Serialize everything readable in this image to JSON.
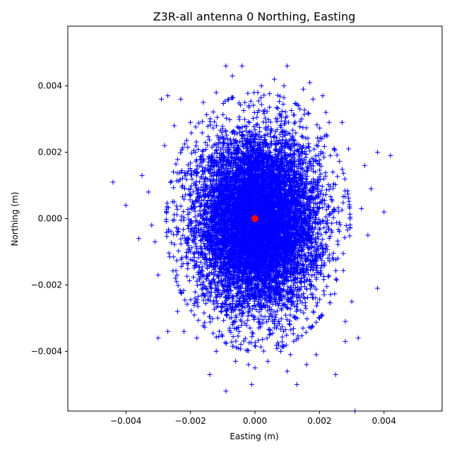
{
  "chart_data": {
    "type": "scatter",
    "title": "Z3R-all antenna 0 Northing, Easting",
    "xlabel": "Easting (m)",
    "ylabel": "Northing (m)",
    "xlim": [
      -0.0058,
      0.0058
    ],
    "ylim": [
      -0.0058,
      0.0058
    ],
    "x_ticks": [
      -0.004,
      -0.002,
      0.0,
      0.002,
      0.004
    ],
    "x_tick_labels": [
      "−0.004",
      "−0.002",
      "0.000",
      "0.002",
      "0.004"
    ],
    "y_ticks": [
      -0.004,
      -0.002,
      0.0,
      0.002,
      0.004
    ],
    "y_tick_labels": [
      "−0.004",
      "−0.002",
      "0.000",
      "0.002",
      "0.004"
    ],
    "grid": false,
    "legend": "none",
    "series": [
      {
        "marker": "plus",
        "color": "#0000ff",
        "center": [
          0.0001,
          -0.0001
        ],
        "sigma": [
          0.00095,
          0.0013
        ],
        "count": 9000,
        "points": [
          [
            -0.0044,
            0.0011
          ],
          [
            -0.004,
            0.0004
          ],
          [
            -0.0036,
            -0.0006
          ],
          [
            -0.0035,
            0.0013
          ],
          [
            -0.0033,
            0.0008
          ],
          [
            -0.0031,
            -0.0007
          ],
          [
            -0.003,
            -0.0017
          ],
          [
            -0.003,
            -0.0036
          ],
          [
            -0.0029,
            0.0036
          ],
          [
            -0.0027,
            0.0037
          ],
          [
            -0.0027,
            -0.0034
          ],
          [
            -0.0025,
            0.0028
          ],
          [
            -0.0024,
            -0.0028
          ],
          [
            -0.0023,
            0.0036
          ],
          [
            -0.0022,
            -0.0034
          ],
          [
            -0.002,
            0.0029
          ],
          [
            -0.0018,
            -0.0036
          ],
          [
            -0.0016,
            0.0035
          ],
          [
            -0.0014,
            -0.0047
          ],
          [
            -0.0012,
            0.0038
          ],
          [
            -0.0012,
            -0.004
          ],
          [
            -0.0009,
            0.0046
          ],
          [
            -0.0009,
            -0.0052
          ],
          [
            -0.0007,
            0.0043
          ],
          [
            -0.0006,
            -0.0043
          ],
          [
            -0.0004,
            0.0046
          ],
          [
            -0.0002,
            -0.0044
          ],
          [
            -0.0001,
            -0.005
          ],
          [
            0.0,
            -0.0045
          ],
          [
            0.0002,
            0.004
          ],
          [
            0.0004,
            -0.0043
          ],
          [
            0.0006,
            0.0042
          ],
          [
            0.0008,
            -0.004
          ],
          [
            0.0009,
            0.004
          ],
          [
            0.001,
            0.0046
          ],
          [
            0.001,
            -0.0046
          ],
          [
            0.0011,
            -0.0041
          ],
          [
            0.0013,
            -0.005
          ],
          [
            0.0015,
            0.0039
          ],
          [
            0.0016,
            -0.0044
          ],
          [
            0.0017,
            0.0041
          ],
          [
            0.0018,
            0.0036
          ],
          [
            0.0019,
            -0.0041
          ],
          [
            0.0021,
            0.0037
          ],
          [
            0.0022,
            0.0032
          ],
          [
            0.0023,
            0.0029
          ],
          [
            0.0025,
            -0.0047
          ],
          [
            0.0027,
            0.0029
          ],
          [
            0.0028,
            -0.0031
          ],
          [
            0.0029,
            0.0021
          ],
          [
            0.003,
            -0.0025
          ],
          [
            0.0031,
            -0.0058
          ],
          [
            0.0032,
            -0.0036
          ],
          [
            0.0034,
            0.0016
          ],
          [
            0.0036,
            0.0009
          ],
          [
            0.0038,
            -0.0021
          ],
          [
            0.0038,
            0.002
          ],
          [
            0.004,
            0.0002
          ],
          [
            0.0042,
            0.0019
          ],
          [
            0.0035,
            -0.0005
          ],
          [
            0.0033,
            0.0003
          ],
          [
            0.0028,
            -0.0037
          ],
          [
            -0.0028,
            0.0022
          ],
          [
            -0.0032,
            -0.0002
          ]
        ]
      },
      {
        "marker": "circle",
        "color": "#ff0000",
        "points": [
          [
            0.0,
            0.0
          ]
        ]
      }
    ]
  }
}
